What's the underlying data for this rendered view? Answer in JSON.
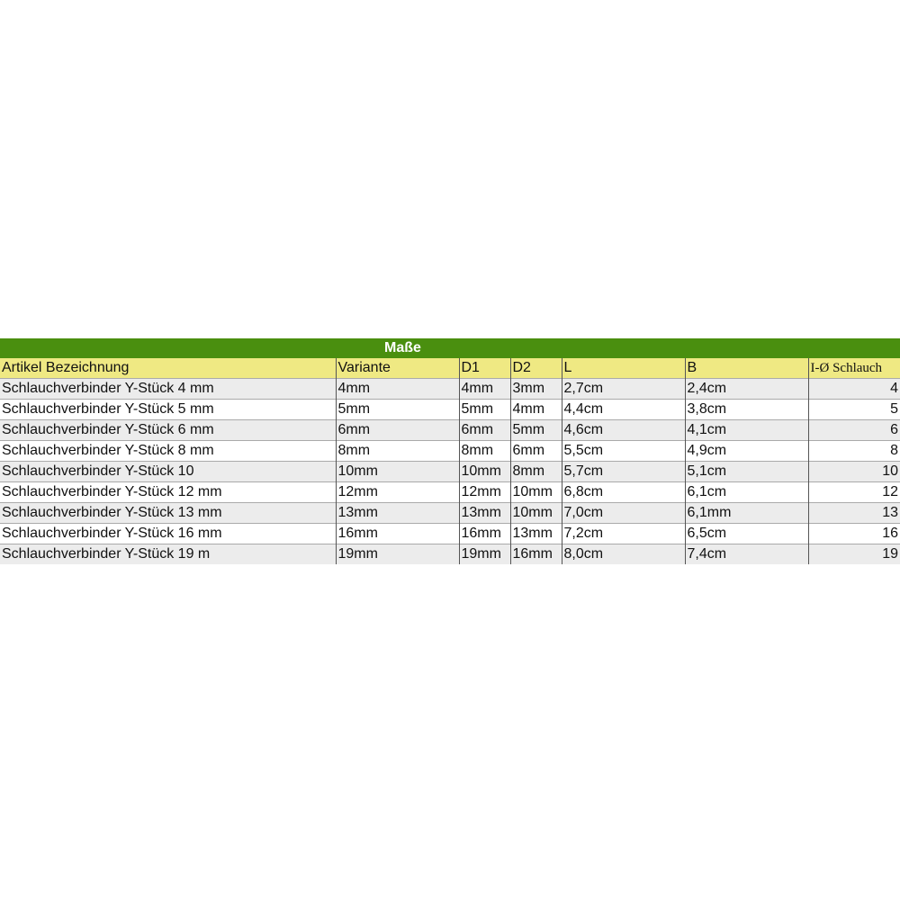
{
  "table": {
    "group_title": "Maße",
    "headers": [
      "Artikel Bezeichnung",
      "Variante",
      "D1",
      "D2",
      "L",
      "B",
      "I-Ø Schlauch"
    ],
    "rows": [
      [
        "Schlauchverbinder Y-Stück 4 mm",
        "4mm",
        "4mm",
        "3mm",
        "2,7cm",
        "2,4cm",
        "4"
      ],
      [
        "Schlauchverbinder Y-Stück 5 mm",
        "5mm",
        "5mm",
        "4mm",
        "4,4cm",
        "3,8cm",
        "5"
      ],
      [
        "Schlauchverbinder Y-Stück 6 mm",
        "6mm",
        "6mm",
        "5mm",
        "4,6cm",
        "4,1cm",
        "6"
      ],
      [
        "Schlauchverbinder Y-Stück 8 mm",
        "8mm",
        "8mm",
        "6mm",
        "5,5cm",
        "4,9cm",
        "8"
      ],
      [
        "Schlauchverbinder Y-Stück 10",
        "10mm",
        "10mm",
        "8mm",
        "5,7cm",
        "5,1cm",
        "10"
      ],
      [
        "Schlauchverbinder Y-Stück 12 mm",
        "12mm",
        "12mm",
        "10mm",
        "6,8cm",
        "6,1cm",
        "12"
      ],
      [
        "Schlauchverbinder Y-Stück 13 mm",
        "13mm",
        "13mm",
        "10mm",
        "7,0cm",
        "6,1mm",
        "13"
      ],
      [
        "Schlauchverbinder Y-Stück 16 mm",
        "16mm",
        "16mm",
        "13mm",
        "7,2cm",
        "6,5cm",
        "16"
      ],
      [
        "Schlauchverbinder Y-Stück 19 m",
        "19mm",
        "19mm",
        "16mm",
        "8,0cm",
        "7,4cm",
        "19"
      ]
    ]
  },
  "colors": {
    "title_bg": "#4a8f0f",
    "header_bg": "#efe983",
    "alt_row_bg": "#ececec"
  }
}
